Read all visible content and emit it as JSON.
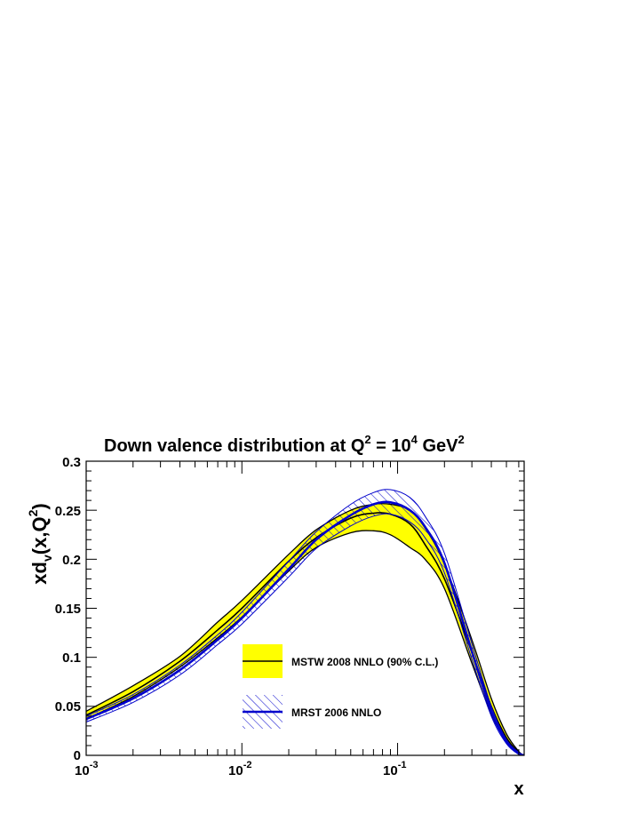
{
  "chart_data": {
    "type": "line",
    "title": {
      "prefix": "Down valence distribution at Q",
      "sup1": "2",
      "mid": " = 10",
      "sup2": "4",
      "mid2": " GeV",
      "sup3": "2"
    },
    "ylabel": {
      "a": "xd",
      "sub": "v",
      "b": "(x,Q",
      "sup": "2",
      "c": ")"
    },
    "xlabel": "x",
    "x_scale": "log",
    "xlim": [
      0.001,
      0.65
    ],
    "ylim": [
      0,
      0.3
    ],
    "yticks": [
      "0",
      "0.05",
      "0.1",
      "0.15",
      "0.2",
      "0.25",
      "0.3"
    ],
    "xticks": [
      {
        "base": "10",
        "exp": "-3"
      },
      {
        "base": "10",
        "exp": "-2"
      },
      {
        "base": "10",
        "exp": "-1"
      }
    ],
    "x": [
      0.001,
      0.002,
      0.004,
      0.007,
      0.01,
      0.02,
      0.03,
      0.05,
      0.07,
      0.09,
      0.12,
      0.15,
      0.2,
      0.3,
      0.4,
      0.5,
      0.6,
      0.65
    ],
    "series": [
      {
        "name": "MSTW 2008 NNLO (90% C.L.)",
        "color": "#000000",
        "band_color": "#ffff00",
        "central": [
          0.041,
          0.065,
          0.096,
          0.128,
          0.15,
          0.198,
          0.222,
          0.242,
          0.247,
          0.246,
          0.236,
          0.215,
          0.18,
          0.105,
          0.05,
          0.018,
          0.003,
          0.0
        ],
        "upper": [
          0.045,
          0.071,
          0.101,
          0.136,
          0.158,
          0.205,
          0.23,
          0.25,
          0.256,
          0.256,
          0.25,
          0.232,
          0.195,
          0.118,
          0.058,
          0.022,
          0.004,
          0.0
        ],
        "lower": [
          0.037,
          0.06,
          0.09,
          0.12,
          0.141,
          0.188,
          0.212,
          0.227,
          0.229,
          0.225,
          0.212,
          0.2,
          0.17,
          0.094,
          0.042,
          0.014,
          0.002,
          0.0
        ]
      },
      {
        "name": "MRST 2006 NNLO",
        "color": "#0000cc",
        "band_color": "#0000cc",
        "central": [
          0.037,
          0.058,
          0.087,
          0.118,
          0.14,
          0.19,
          0.22,
          0.245,
          0.256,
          0.258,
          0.25,
          0.233,
          0.196,
          0.106,
          0.045,
          0.014,
          0.002,
          0.0
        ],
        "upper": [
          0.04,
          0.062,
          0.092,
          0.123,
          0.146,
          0.198,
          0.228,
          0.256,
          0.268,
          0.271,
          0.263,
          0.244,
          0.206,
          0.114,
          0.05,
          0.016,
          0.003,
          0.0
        ],
        "lower": [
          0.034,
          0.054,
          0.082,
          0.113,
          0.134,
          0.182,
          0.211,
          0.234,
          0.244,
          0.246,
          0.238,
          0.222,
          0.186,
          0.098,
          0.04,
          0.012,
          0.001,
          0.0
        ]
      }
    ],
    "grid": false,
    "legend_position": "lower-center"
  }
}
